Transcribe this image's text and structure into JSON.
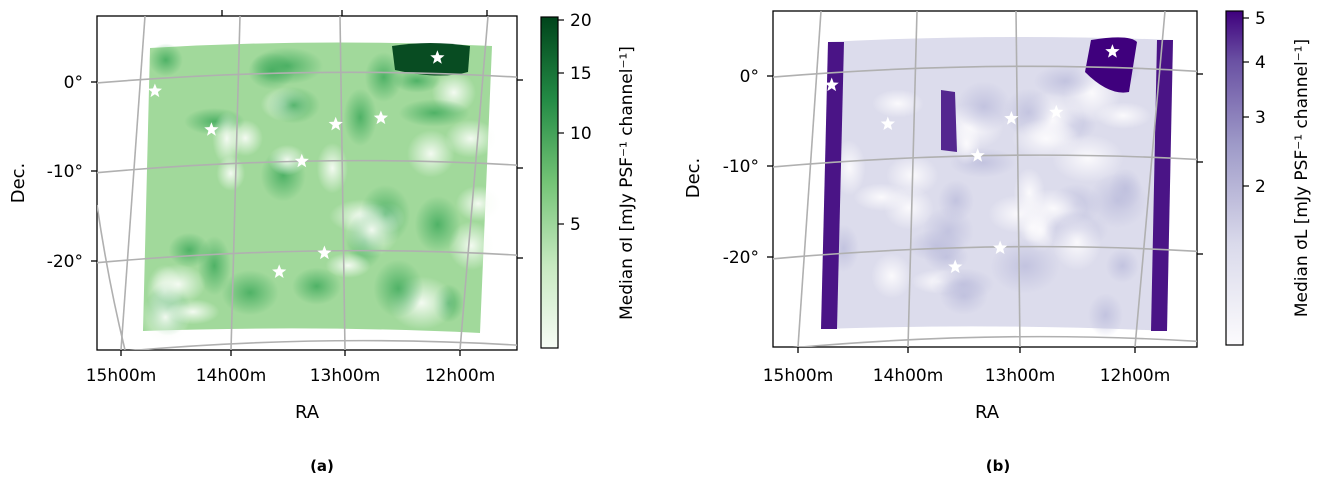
{
  "panels": [
    {
      "id": "a",
      "caption": "(a)",
      "colorbar_label": "Median σI [mJy PSF⁻¹ channel⁻¹]",
      "colormap": [
        "#f7fcf5",
        "#c7e9c0",
        "#74c476",
        "#238b45",
        "#00441b"
      ],
      "colorbar_ticks": [
        "20",
        "15",
        "10",
        "5"
      ]
    },
    {
      "id": "b",
      "caption": "(b)",
      "colorbar_label": "Median σL [mJy PSF⁻¹ channel⁻¹]",
      "colormap": [
        "#fcfbfd",
        "#dadaeb",
        "#9e9ac8",
        "#6a51a3",
        "#3f007d"
      ],
      "colorbar_ticks": [
        "5",
        "4",
        "3",
        "2"
      ]
    }
  ],
  "chart_data": [
    {
      "type": "heatmap",
      "panel": "a",
      "xlabel": "RA",
      "ylabel": "Dec.",
      "x_ticks": [
        "15h00m",
        "14h00m",
        "13h00m",
        "12h00m"
      ],
      "y_ticks": [
        "0°",
        "-10°",
        "-20°"
      ],
      "colorbar": {
        "label": "Median σI [mJy PSF⁻¹ channel⁻¹]",
        "ticks": [
          20,
          15,
          10,
          5
        ],
        "range": [
          2,
          20
        ]
      },
      "markers": [
        {
          "ra_h": 14.7,
          "dec": -1.0
        },
        {
          "ra_h": 14.2,
          "dec": -5.3
        },
        {
          "ra_h": 13.1,
          "dec": -4.7
        },
        {
          "ra_h": 12.7,
          "dec": -4.0
        },
        {
          "ra_h": 13.4,
          "dec": -8.8
        },
        {
          "ra_h": 12.2,
          "dec": 2.7
        },
        {
          "ra_h": 13.2,
          "dec": -19.0
        },
        {
          "ra_h": 13.6,
          "dec": -21.1
        }
      ]
    },
    {
      "type": "heatmap",
      "panel": "b",
      "xlabel": "RA",
      "ylabel": "Dec.",
      "x_ticks": [
        "15h00m",
        "14h00m",
        "13h00m",
        "12h00m"
      ],
      "y_ticks": [
        "0°",
        "-10°",
        "-20°"
      ],
      "colorbar": {
        "label": "Median σL [mJy PSF⁻¹ channel⁻¹]",
        "ticks": [
          5,
          4,
          3,
          2
        ],
        "range": [
          1,
          5.2
        ]
      },
      "markers": [
        {
          "ra_h": 14.7,
          "dec": -1.0
        },
        {
          "ra_h": 14.2,
          "dec": -5.3
        },
        {
          "ra_h": 13.1,
          "dec": -4.7
        },
        {
          "ra_h": 12.7,
          "dec": -4.0
        },
        {
          "ra_h": 13.4,
          "dec": -8.8
        },
        {
          "ra_h": 12.2,
          "dec": 2.7
        },
        {
          "ra_h": 13.2,
          "dec": -19.0
        },
        {
          "ra_h": 13.6,
          "dec": -21.1
        }
      ]
    }
  ]
}
